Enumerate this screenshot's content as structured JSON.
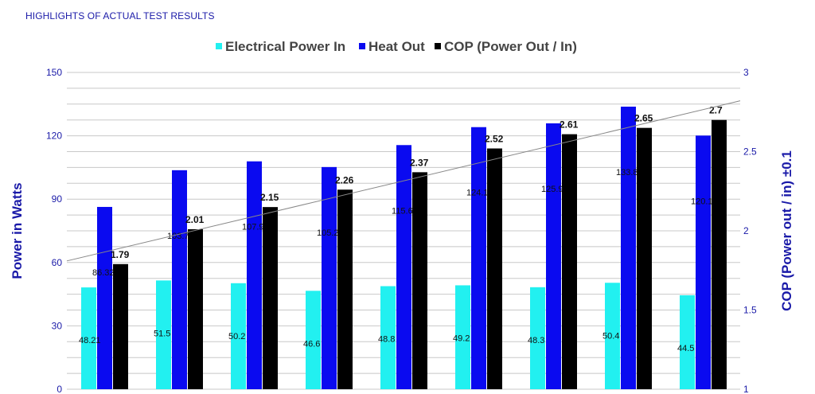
{
  "page_title": "HIGHLIGHTS OF ACTUAL TEST RESULTS",
  "chart_data": {
    "type": "bar",
    "title": "",
    "ylabel": "Power in Watts",
    "y2label": "COP (Power out / in) ±0.1",
    "ylim": [
      0,
      150
    ],
    "y2lim": [
      1,
      3
    ],
    "yticks": [
      "0",
      "30",
      "60",
      "90",
      "120",
      "150"
    ],
    "y2ticks": [
      "1",
      "1.5",
      "2",
      "2.5",
      "3"
    ],
    "grid": true,
    "legend_position": "top-center",
    "trendline": true,
    "colors": {
      "power_in": "#22f0f0",
      "heat_out": "#0a0af0",
      "cop": "#000000",
      "grid": "#c8c8c8",
      "trend": "#888888"
    },
    "series": [
      {
        "name": "Electrical Power In",
        "axis": "left",
        "values": [
          48.21,
          51.5,
          50.2,
          46.6,
          48.8,
          49.2,
          48.3,
          50.4,
          44.5
        ],
        "labels": [
          "48.21",
          "51.5",
          "50.2",
          "46.6",
          "48.8",
          "49.2",
          "48.3",
          "50.4",
          "44.5"
        ]
      },
      {
        "name": "Heat Out",
        "axis": "left",
        "values": [
          86.32,
          103.7,
          107.9,
          105.2,
          115.6,
          124.1,
          125.9,
          133.8,
          120.1
        ],
        "labels": [
          "86.32",
          "103.7",
          "107.9",
          "105.2",
          "115.6",
          "124.1",
          "125.9",
          "133.8",
          "120.1"
        ]
      },
      {
        "name": "COP (Power Out / In)",
        "axis": "right",
        "values": [
          1.79,
          2.01,
          2.15,
          2.26,
          2.37,
          2.52,
          2.61,
          2.65,
          2.7
        ],
        "labels": [
          "1.79",
          "2.01",
          "2.15",
          "2.26",
          "2.37",
          "2.52",
          "2.61",
          "2.65",
          "2.7"
        ]
      }
    ]
  }
}
